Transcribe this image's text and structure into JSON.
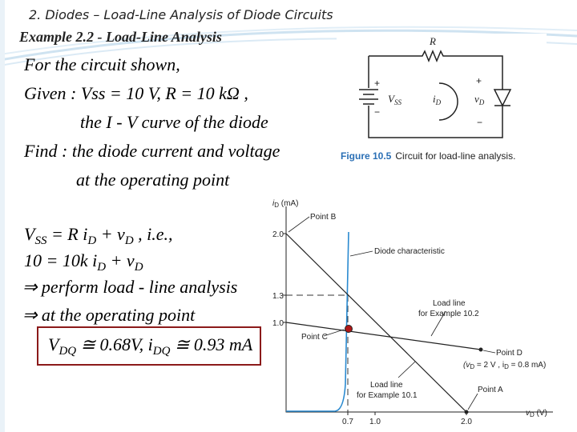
{
  "header": {
    "title": "2. Diodes – Load-Line Analysis of Diode Circuits",
    "subtitle": "Example 2.2 -  Load-Line Analysis"
  },
  "problem": {
    "lines": [
      "For the circuit shown,",
      "Given : Vss = 10 V,  R = 10 kΩ ,",
      "the I - V  curve of  the diode",
      "Find  : the diode current and voltage",
      "at the  operating  point"
    ]
  },
  "solution": {
    "eq0": [
      "V",
      "SS",
      "  =  R i",
      "D",
      " + v",
      "D",
      " ,  i.e.,"
    ],
    "eq1": [
      "10 = 10k i",
      "D",
      " + v",
      "D"
    ],
    "eq2": "⇒  perform load - line analysis",
    "eq3": "⇒  at the operating  point",
    "answer": [
      "V",
      "DQ",
      " ≅ 0.68V,  i",
      "DQ",
      " ≅ 0.93 mA"
    ]
  },
  "circuit": {
    "resistor": "R",
    "plus_left": "+",
    "source": [
      "V",
      "SS"
    ],
    "current": [
      "i",
      "D"
    ],
    "plus_right": "+",
    "voltage": [
      "v",
      "D"
    ],
    "minus_left": "−",
    "minus_right": "−",
    "caption_label": "Figure 10.5",
    "caption_text": "Circuit for load-line analysis."
  },
  "graph": {
    "y_label": [
      "i",
      "D",
      " (mA)"
    ],
    "x_label": [
      "v",
      "D",
      " (V)"
    ],
    "y_ticks": [
      "2.0",
      "1.3",
      "1.0"
    ],
    "x_ticks": [
      "0.7",
      "1.0",
      "2.0"
    ],
    "point_b": "Point B",
    "diode_char": "Diode characteristic",
    "load_102": [
      "Load line",
      "for Example 10.2"
    ],
    "point_c": "Point C",
    "point_d": "Point D",
    "point_d_coords": [
      "(v",
      "D",
      " = 2 V , i",
      "D",
      " = 0.8 mA)"
    ],
    "load_101": [
      "Load line",
      "for Example 10.1"
    ],
    "point_a": "Point A"
  }
}
